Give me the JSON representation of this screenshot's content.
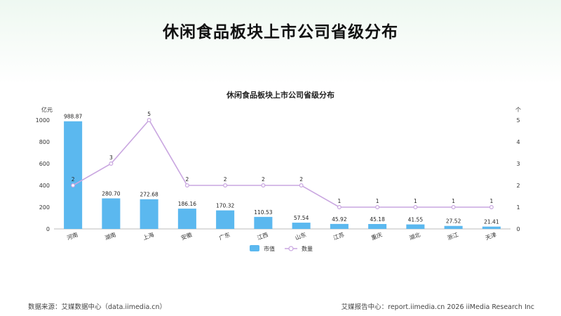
{
  "page": {
    "title": "休闲食品板块上市公司省级分布",
    "source_left": "数据来源：艾媒数据中心（data.iimedia.cn）",
    "source_right": "艾媒报告中心：report.iimedia.cn   2026 iiMedia Research Inc"
  },
  "chart_data": {
    "type": "bar",
    "title": "休闲食品板块上市公司省级分布",
    "categories": [
      "河南",
      "湖南",
      "上海",
      "安徽",
      "广东",
      "江西",
      "山东",
      "江苏",
      "重庆",
      "湖北",
      "浙江",
      "天津"
    ],
    "series": [
      {
        "name": "市值",
        "type": "bar",
        "axis": "left",
        "color": "#5bb8ef",
        "values": [
          988.87,
          280.7,
          272.68,
          186.16,
          170.32,
          110.53,
          57.54,
          45.92,
          45.18,
          41.55,
          27.52,
          21.41
        ],
        "labels": [
          "988.87",
          "280.70",
          "272.68",
          "186.16",
          "170.32",
          "110.53",
          "57.54",
          "45.92",
          "45.18",
          "41.55",
          "27.52",
          "21.41"
        ]
      },
      {
        "name": "数量",
        "type": "line",
        "axis": "right",
        "color": "#c9a6e0",
        "values": [
          2,
          3,
          5,
          2,
          2,
          2,
          2,
          1,
          1,
          1,
          1,
          1
        ]
      }
    ],
    "y_left": {
      "unit": "亿元",
      "min": 0,
      "max": 1000,
      "ticks": [
        0,
        200,
        400,
        600,
        800,
        1000
      ]
    },
    "y_right": {
      "unit": "个",
      "min": 0,
      "max": 5,
      "ticks": [
        0,
        1,
        2,
        3,
        4,
        5
      ]
    },
    "legend_position": "bottom-center",
    "grid": false
  }
}
